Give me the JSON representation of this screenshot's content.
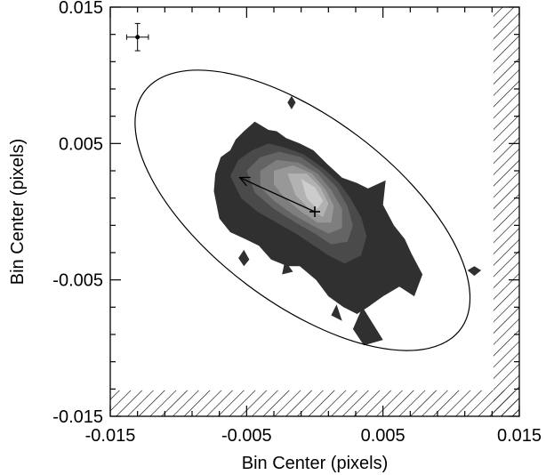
{
  "chart_data": {
    "type": "contour",
    "title": "",
    "xlabel": "Bin Center (pixels)",
    "ylabel": "Bin Center (pixels)",
    "xlim": [
      -0.015,
      0.015
    ],
    "ylim": [
      -0.015,
      0.015
    ],
    "x_ticks": [
      -0.015,
      -0.005,
      0.005,
      0.015
    ],
    "y_ticks": [
      -0.015,
      -0.005,
      0.005,
      0.015
    ],
    "x_tick_labels": [
      "-0.015",
      "-0.005",
      "0.005",
      "0.015"
    ],
    "y_tick_labels": [
      "-0.015",
      "-0.005",
      "0.005",
      "0.015"
    ],
    "minor_ticks_per_major": 5,
    "grid": false,
    "centroid": {
      "x": 0.0,
      "y": 0.0
    },
    "vector_tip": {
      "x": -0.0055,
      "y": 0.0025
    },
    "ellipse": {
      "cx": -0.0009,
      "cy": 0.0001,
      "semi_major": 0.0145,
      "semi_minor": 0.0068,
      "angle_deg": -37
    },
    "error_bar": {
      "x": -0.013,
      "y": 0.0128,
      "x_err": 0.0008,
      "y_err": 0.001
    },
    "hatched_exclusion": {
      "x_min": 0.0131,
      "y_max": -0.0131
    },
    "contour_level_colors": [
      "#303030",
      "#4a4a4a",
      "#646464",
      "#7e7e7e",
      "#989898",
      "#b2b2b2",
      "#cccccc"
    ],
    "contour_levels": [
      {
        "level": 1,
        "polygon": [
          [
            -0.0073,
            0.0028
          ],
          [
            -0.0069,
            0.004
          ],
          [
            -0.0062,
            0.0045
          ],
          [
            -0.0058,
            0.0053
          ],
          [
            -0.0052,
            0.0059
          ],
          [
            -0.0044,
            0.0066
          ],
          [
            -0.0039,
            0.0063
          ],
          [
            -0.0034,
            0.006
          ],
          [
            -0.0028,
            0.0059
          ],
          [
            -0.0021,
            0.0054
          ],
          [
            -0.0011,
            0.005
          ],
          [
            -0.0001,
            0.0045
          ],
          [
            0.0009,
            0.0035
          ],
          [
            0.002,
            0.0025
          ],
          [
            0.0031,
            0.0021
          ],
          [
            0.0039,
            0.0017
          ],
          [
            0.0052,
            0.0023
          ],
          [
            0.005,
            0.0005
          ],
          [
            0.0058,
            -0.001
          ],
          [
            0.0066,
            -0.002
          ],
          [
            0.0071,
            -0.0031
          ],
          [
            0.0079,
            -0.0046
          ],
          [
            0.0073,
            -0.0062
          ],
          [
            0.0062,
            -0.0055
          ],
          [
            0.005,
            -0.0062
          ],
          [
            0.0039,
            -0.007
          ],
          [
            0.0031,
            -0.0075
          ],
          [
            0.0021,
            -0.007
          ],
          [
            0.001,
            -0.0062
          ],
          [
            0.0001,
            -0.005
          ],
          [
            -0.0011,
            -0.004
          ],
          [
            -0.002,
            -0.004
          ],
          [
            -0.0032,
            -0.0035
          ],
          [
            -0.0041,
            -0.0025
          ],
          [
            -0.0051,
            -0.002
          ],
          [
            -0.0062,
            -0.0015
          ],
          [
            -0.007,
            -0.0005
          ],
          [
            -0.0074,
            0.0015
          ]
        ]
      },
      {
        "level": 2,
        "polygon": [
          [
            -0.0062,
            0.0026
          ],
          [
            -0.0056,
            0.0038
          ],
          [
            -0.0046,
            0.0045
          ],
          [
            -0.0034,
            0.005
          ],
          [
            -0.0022,
            0.0047
          ],
          [
            -0.0008,
            0.0042
          ],
          [
            0.0006,
            0.0032
          ],
          [
            0.0018,
            0.0021
          ],
          [
            0.0026,
            0.001
          ],
          [
            0.0034,
            -0.0004
          ],
          [
            0.0038,
            -0.0018
          ],
          [
            0.0034,
            -0.0032
          ],
          [
            0.0022,
            -0.0038
          ],
          [
            0.001,
            -0.0032
          ],
          [
            -0.0002,
            -0.0024
          ],
          [
            -0.0014,
            -0.0016
          ],
          [
            -0.0028,
            -0.0008
          ],
          [
            -0.0042,
            0.0
          ],
          [
            -0.0054,
            0.001
          ]
        ]
      },
      {
        "level": 3,
        "polygon": [
          [
            -0.005,
            0.003
          ],
          [
            -0.004,
            0.004
          ],
          [
            -0.0026,
            0.0044
          ],
          [
            -0.001,
            0.004
          ],
          [
            0.0004,
            0.003
          ],
          [
            0.0016,
            0.0018
          ],
          [
            0.0024,
            0.0004
          ],
          [
            0.0028,
            -0.001
          ],
          [
            0.0024,
            -0.0022
          ],
          [
            0.0012,
            -0.0024
          ],
          [
            0.0,
            -0.0016
          ],
          [
            -0.0014,
            -0.0008
          ],
          [
            -0.003,
            0.0002
          ],
          [
            -0.0044,
            0.0014
          ]
        ]
      },
      {
        "level": 4,
        "polygon": [
          [
            -0.004,
            0.003
          ],
          [
            -0.0028,
            0.0038
          ],
          [
            -0.0012,
            0.0036
          ],
          [
            0.0002,
            0.0028
          ],
          [
            0.0012,
            0.0016
          ],
          [
            0.002,
            0.0002
          ],
          [
            0.002,
            -0.0012
          ],
          [
            0.001,
            -0.0016
          ],
          [
            -0.0002,
            -0.001
          ],
          [
            -0.0016,
            -0.0002
          ],
          [
            -0.003,
            0.0008
          ],
          [
            -0.004,
            0.0018
          ]
        ]
      },
      {
        "level": 5,
        "polygon": [
          [
            -0.003,
            0.003
          ],
          [
            -0.0016,
            0.0034
          ],
          [
            -0.0002,
            0.0028
          ],
          [
            0.0008,
            0.0016
          ],
          [
            0.0014,
            0.0004
          ],
          [
            0.0012,
            -0.0008
          ],
          [
            0.0002,
            -0.0008
          ],
          [
            -0.001,
            0.0
          ],
          [
            -0.0022,
            0.001
          ],
          [
            -0.003,
            0.002
          ]
        ]
      },
      {
        "level": 6,
        "polygon": [
          [
            -0.002,
            0.0028
          ],
          [
            -0.0006,
            0.0028
          ],
          [
            0.0004,
            0.0018
          ],
          [
            0.001,
            0.0006
          ],
          [
            0.0006,
            -0.0004
          ],
          [
            -0.0004,
            0.0002
          ],
          [
            -0.0014,
            0.0012
          ]
        ]
      },
      {
        "level": 7,
        "polygon": [
          [
            -0.001,
            0.0024
          ],
          [
            0.0,
            0.0018
          ],
          [
            0.0006,
            0.0008
          ],
          [
            0.0002,
            0.0002
          ],
          [
            -0.0006,
            0.001
          ]
        ]
      }
    ],
    "isolated_islands": [
      {
        "level": 1,
        "polygon": [
          [
            -0.0017,
            0.0085
          ],
          [
            -0.0014,
            0.008
          ],
          [
            -0.0017,
            0.0075
          ],
          [
            -0.002,
            0.008
          ]
        ]
      },
      {
        "level": 1,
        "polygon": [
          [
            0.0117,
            -0.004
          ],
          [
            0.0122,
            -0.0043
          ],
          [
            0.0117,
            -0.0047
          ],
          [
            0.0112,
            -0.0043
          ]
        ]
      },
      {
        "level": 1,
        "polygon": [
          [
            -0.0052,
            -0.0028
          ],
          [
            -0.0048,
            -0.0035
          ],
          [
            -0.0052,
            -0.004
          ],
          [
            -0.0056,
            -0.0034
          ]
        ]
      },
      {
        "level": 1,
        "polygon": [
          [
            0.0035,
            -0.007
          ],
          [
            0.005,
            -0.0094
          ],
          [
            0.0036,
            -0.0098
          ],
          [
            0.0028,
            -0.0086
          ]
        ]
      },
      {
        "level": 1,
        "polygon": [
          [
            0.0016,
            -0.0068
          ],
          [
            0.002,
            -0.008
          ],
          [
            0.0012,
            -0.0076
          ]
        ]
      },
      {
        "level": 1,
        "polygon": [
          [
            -0.0022,
            -0.0036
          ],
          [
            -0.0016,
            -0.0044
          ],
          [
            -0.0024,
            -0.0046
          ]
        ]
      }
    ]
  }
}
